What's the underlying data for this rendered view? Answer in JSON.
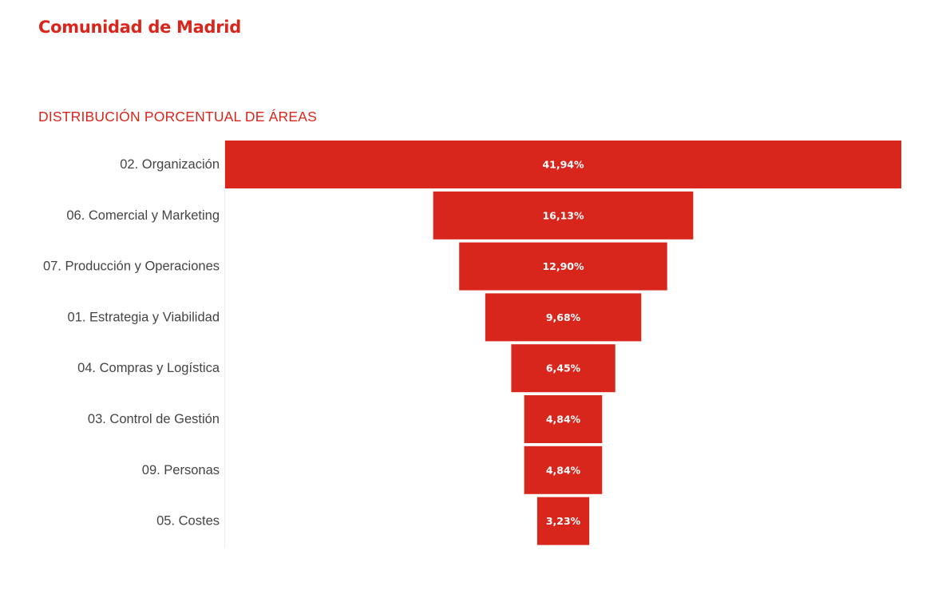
{
  "header": {
    "title": "Comunidad de Madrid"
  },
  "colors": {
    "accent": "#d9261c",
    "bar": "#d9261c",
    "label": "#444444",
    "value_label": "#ffffff",
    "axis_line": "#eaeaea"
  },
  "chart_data": {
    "type": "bar",
    "subtype": "funnel",
    "title": "DISTRIBUCIÓN PORCENTUAL DE ÁREAS",
    "categories": [
      "02. Organización",
      "06. Comercial y Marketing",
      "07. Producción y Operaciones",
      "01. Estrategia y Viabilidad",
      "04. Compras y Logística",
      "03. Control de Gestión",
      "09. Personas",
      "05. Costes"
    ],
    "values": [
      41.94,
      16.13,
      12.9,
      9.68,
      6.45,
      4.84,
      4.84,
      3.23
    ],
    "value_labels": [
      "41,94%",
      "16,13%",
      "12,90%",
      "9,68%",
      "6,45%",
      "4,84%",
      "4,84%",
      "3,23%"
    ],
    "unit": "%",
    "legend": "none",
    "grid": false
  }
}
